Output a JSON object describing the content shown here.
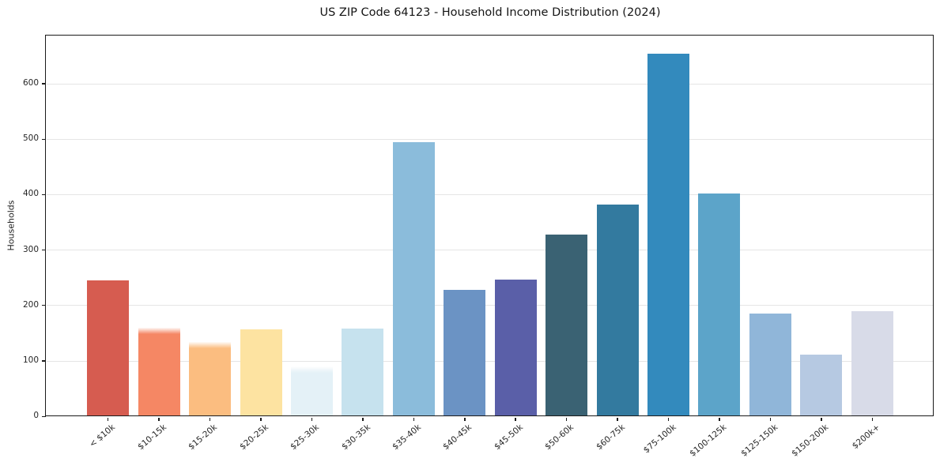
{
  "chart_data": {
    "type": "bar",
    "title": "US ZIP Code 64123 - Household Income Distribution (2024)",
    "xlabel": "",
    "ylabel": "Households",
    "categories": [
      "< $10k",
      "$10-15k",
      "$15-20k",
      "$20-25k",
      "$25-30k",
      "$30-35k",
      "$35-40k",
      "$40-45k",
      "$45-50k",
      "$50-60k",
      "$60-75k",
      "$75-100k",
      "$100-125k",
      "$125-150k",
      "$150-200k",
      "$200k+"
    ],
    "values": [
      246,
      160,
      135,
      157,
      90,
      159,
      495,
      229,
      247,
      328,
      382,
      654,
      402,
      186,
      112,
      190
    ],
    "bar_colors": [
      "#d65c50",
      "#f58764",
      "#fbbd80",
      "#fde3a1",
      "#e4f1f7",
      "#c6e2ee",
      "#8bbcdb",
      "#6b93c4",
      "#5a5fa8",
      "#3a6273",
      "#337a9f",
      "#338abd",
      "#5ca4c9",
      "#90b6d9",
      "#b6c9e2",
      "#d8dbe8"
    ],
    "soft_top_bars": [
      1,
      2,
      4
    ],
    "yticks": [
      0,
      100,
      200,
      300,
      400,
      500,
      600
    ],
    "ylim": [
      0,
      687
    ],
    "grid": "horizontal",
    "gridline_color": "#e5e5e5",
    "axis_color": "#1a1a1a",
    "legend": "none",
    "x_tick_rotation_deg": 40
  }
}
